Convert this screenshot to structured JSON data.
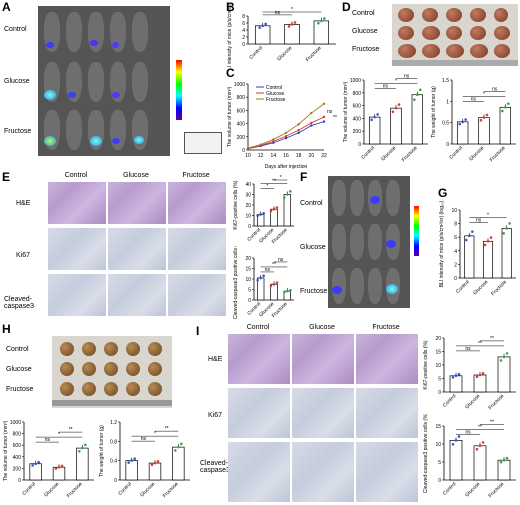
{
  "panels": {
    "A": {
      "label": "A",
      "rows": [
        "Control",
        "Glucose",
        "Fructose"
      ]
    },
    "B": {
      "label": "B"
    },
    "C": {
      "label": "C"
    },
    "D": {
      "label": "D",
      "rows": [
        "Control",
        "Glucose",
        "Fructose"
      ]
    },
    "E": {
      "label": "E",
      "cols": [
        "Control",
        "Glucose",
        "Fructose"
      ],
      "rows": [
        "H&E",
        "Ki67",
        "Cleaved-\ncaspase3"
      ]
    },
    "F": {
      "label": "F",
      "rows": [
        "Control",
        "Glucose",
        "Fructose"
      ]
    },
    "G": {
      "label": "G"
    },
    "H": {
      "label": "H",
      "rows": [
        "Control",
        "Glucose",
        "Fructose"
      ]
    },
    "I": {
      "label": "I",
      "cols": [
        "Control",
        "Glucose",
        "Fructose"
      ],
      "rows": [
        "H&E",
        "Ki67",
        "Cleaved-\ncaspase3"
      ]
    }
  },
  "chart_data": [
    {
      "id": "B",
      "type": "bar",
      "categories": [
        "Control",
        "Glucose",
        "Fructose"
      ],
      "values": [
        5.2,
        5.6,
        6.6
      ],
      "ylabel": "BLI intensity of mice (p/s/cm²/sr) (log₁₀)",
      "ylim": [
        0,
        8
      ],
      "yticks": [
        0,
        2,
        4,
        6,
        8
      ],
      "sig": [
        {
          "a": 0,
          "b": 1,
          "t": "ns"
        },
        {
          "a": 0,
          "b": 2,
          "t": "*"
        }
      ],
      "colors": [
        "#3a55c8",
        "#d63a3a",
        "#3aa34a"
      ]
    },
    {
      "id": "C",
      "type": "line",
      "x": [
        10,
        12,
        14,
        16,
        18,
        20,
        22
      ],
      "xlabel": "Days after injection",
      "ylabel": "The volume of tumor (mm³)",
      "ylim": [
        0,
        1000
      ],
      "yticks": [
        0,
        200,
        400,
        600,
        800,
        1000
      ],
      "series": [
        {
          "name": "Control",
          "color": "#2c3fb8",
          "values": [
            20,
            60,
            110,
            180,
            260,
            370,
            430
          ]
        },
        {
          "name": "Glucose",
          "color": "#d63a3a",
          "values": [
            25,
            70,
            130,
            210,
            300,
            410,
            500
          ]
        },
        {
          "name": "Fructose",
          "color": "#a47a14",
          "values": [
            30,
            80,
            160,
            260,
            390,
            560,
            700
          ]
        }
      ],
      "sig": [
        "ns",
        "**"
      ]
    },
    {
      "id": "D1",
      "type": "bar",
      "categories": [
        "Control",
        "Glucose",
        "Fructose"
      ],
      "values": [
        420,
        560,
        770
      ],
      "ylabel": "The volume of tumor (mm³)",
      "ylim": [
        0,
        1000
      ],
      "yticks": [
        0,
        200,
        400,
        600,
        800,
        1000
      ],
      "sig": [
        {
          "a": 0,
          "b": 1,
          "t": "ns"
        },
        {
          "a": 0,
          "b": 2,
          "t": "*"
        },
        {
          "a": 1,
          "b": 2,
          "t": "ns"
        }
      ],
      "colors": [
        "#3a55c8",
        "#d63a3a",
        "#3aa34a"
      ]
    },
    {
      "id": "D2",
      "type": "bar",
      "categories": [
        "Control",
        "Glucose",
        "Fructose"
      ],
      "values": [
        0.52,
        0.62,
        0.86
      ],
      "ylabel": "The weight of tumor (g)",
      "ylim": [
        0,
        1.5
      ],
      "yticks": [
        0,
        0.5,
        1.0,
        1.5
      ],
      "sig": [
        {
          "a": 0,
          "b": 1,
          "t": "ns"
        },
        {
          "a": 0,
          "b": 2,
          "t": "*"
        },
        {
          "a": 1,
          "b": 2,
          "t": "ns"
        }
      ],
      "colors": [
        "#3a55c8",
        "#d63a3a",
        "#3aa34a"
      ]
    },
    {
      "id": "E1",
      "type": "bar",
      "categories": [
        "Control",
        "Glucose",
        "Fructose"
      ],
      "values": [
        11,
        16,
        30
      ],
      "ylabel": "Ki67-positive cells (%)",
      "ylim": [
        0,
        40
      ],
      "yticks": [
        0,
        10,
        20,
        30,
        40
      ],
      "sig": [
        {
          "a": 0,
          "b": 1,
          "t": "*"
        },
        {
          "a": 0,
          "b": 2,
          "t": "**"
        },
        {
          "a": 1,
          "b": 2,
          "t": "*"
        }
      ],
      "colors": [
        "#3a55c8",
        "#d63a3a",
        "#3aa34a"
      ]
    },
    {
      "id": "E2",
      "type": "bar",
      "categories": [
        "Control",
        "Glucose",
        "Fructose"
      ],
      "values": [
        10.5,
        7.5,
        4.2
      ],
      "ylabel": "Cleaved-caspase3 positive cells (%)",
      "ylim": [
        0,
        20
      ],
      "yticks": [
        0,
        5,
        10,
        15,
        20
      ],
      "sig": [
        {
          "a": 0,
          "b": 1,
          "t": "ns"
        },
        {
          "a": 0,
          "b": 2,
          "t": "**"
        },
        {
          "a": 1,
          "b": 2,
          "t": "ns"
        }
      ],
      "colors": [
        "#3a55c8",
        "#d63a3a",
        "#3aa34a"
      ]
    },
    {
      "id": "G",
      "type": "bar",
      "categories": [
        "Control",
        "Glucose",
        "Fructose"
      ],
      "values": [
        6.2,
        5.4,
        7.3
      ],
      "ylabel": "BLI intensity of mice (p/s/cm²/sr) (log₁₀)",
      "ylim": [
        0,
        10
      ],
      "yticks": [
        0,
        2,
        4,
        6,
        8,
        10
      ],
      "sig": [
        {
          "a": 0,
          "b": 1,
          "t": "ns"
        },
        {
          "a": 0,
          "b": 2,
          "t": "*"
        }
      ],
      "colors": [
        "#3a55c8",
        "#d63a3a",
        "#3aa34a"
      ]
    },
    {
      "id": "H1",
      "type": "bar",
      "categories": [
        "Control",
        "Glucose",
        "Fructose"
      ],
      "values": [
        280,
        220,
        550
      ],
      "ylabel": "The volume of tumor (mm³)",
      "ylim": [
        0,
        1000
      ],
      "yticks": [
        0,
        200,
        400,
        600,
        800,
        1000
      ],
      "sig": [
        {
          "a": 0,
          "b": 1,
          "t": "ns"
        },
        {
          "a": 0,
          "b": 2,
          "t": "*"
        },
        {
          "a": 1,
          "b": 2,
          "t": "**"
        }
      ],
      "colors": [
        "#3a55c8",
        "#d63a3a",
        "#3aa34a"
      ]
    },
    {
      "id": "H2",
      "type": "bar",
      "categories": [
        "Control",
        "Glucose",
        "Fructose"
      ],
      "values": [
        0.4,
        0.35,
        0.68
      ],
      "ylabel": "The weight of tumor (g)",
      "ylim": [
        0,
        1.2
      ],
      "yticks": [
        0,
        0.4,
        0.8,
        1.2
      ],
      "sig": [
        {
          "a": 0,
          "b": 1,
          "t": "ns"
        },
        {
          "a": 0,
          "b": 2,
          "t": "*"
        },
        {
          "a": 1,
          "b": 2,
          "t": "**"
        }
      ],
      "colors": [
        "#3a55c8",
        "#d63a3a",
        "#3aa34a"
      ]
    },
    {
      "id": "I1",
      "type": "bar",
      "categories": [
        "Control",
        "Glucose",
        "Fructose"
      ],
      "values": [
        6,
        6.3,
        13
      ],
      "ylabel": "Ki67-positive cells (%)",
      "ylim": [
        0,
        20
      ],
      "yticks": [
        0,
        5,
        10,
        15,
        20
      ],
      "sig": [
        {
          "a": 0,
          "b": 1,
          "t": "ns"
        },
        {
          "a": 0,
          "b": 2,
          "t": "**"
        },
        {
          "a": 1,
          "b": 2,
          "t": "**"
        }
      ],
      "colors": [
        "#3a55c8",
        "#d63a3a",
        "#3aa34a"
      ]
    },
    {
      "id": "I2",
      "type": "bar",
      "categories": [
        "Control",
        "Glucose",
        "Fructose"
      ],
      "values": [
        11,
        9.5,
        5.5
      ],
      "ylabel": "Cleaved-caspase3 positive cells (%)",
      "ylim": [
        0,
        15
      ],
      "yticks": [
        0,
        5,
        10,
        15
      ],
      "sig": [
        {
          "a": 0,
          "b": 1,
          "t": "ns"
        },
        {
          "a": 0,
          "b": 2,
          "t": "**"
        },
        {
          "a": 1,
          "b": 2,
          "t": "**"
        }
      ],
      "colors": [
        "#3a55c8",
        "#d63a3a",
        "#3aa34a"
      ]
    }
  ]
}
